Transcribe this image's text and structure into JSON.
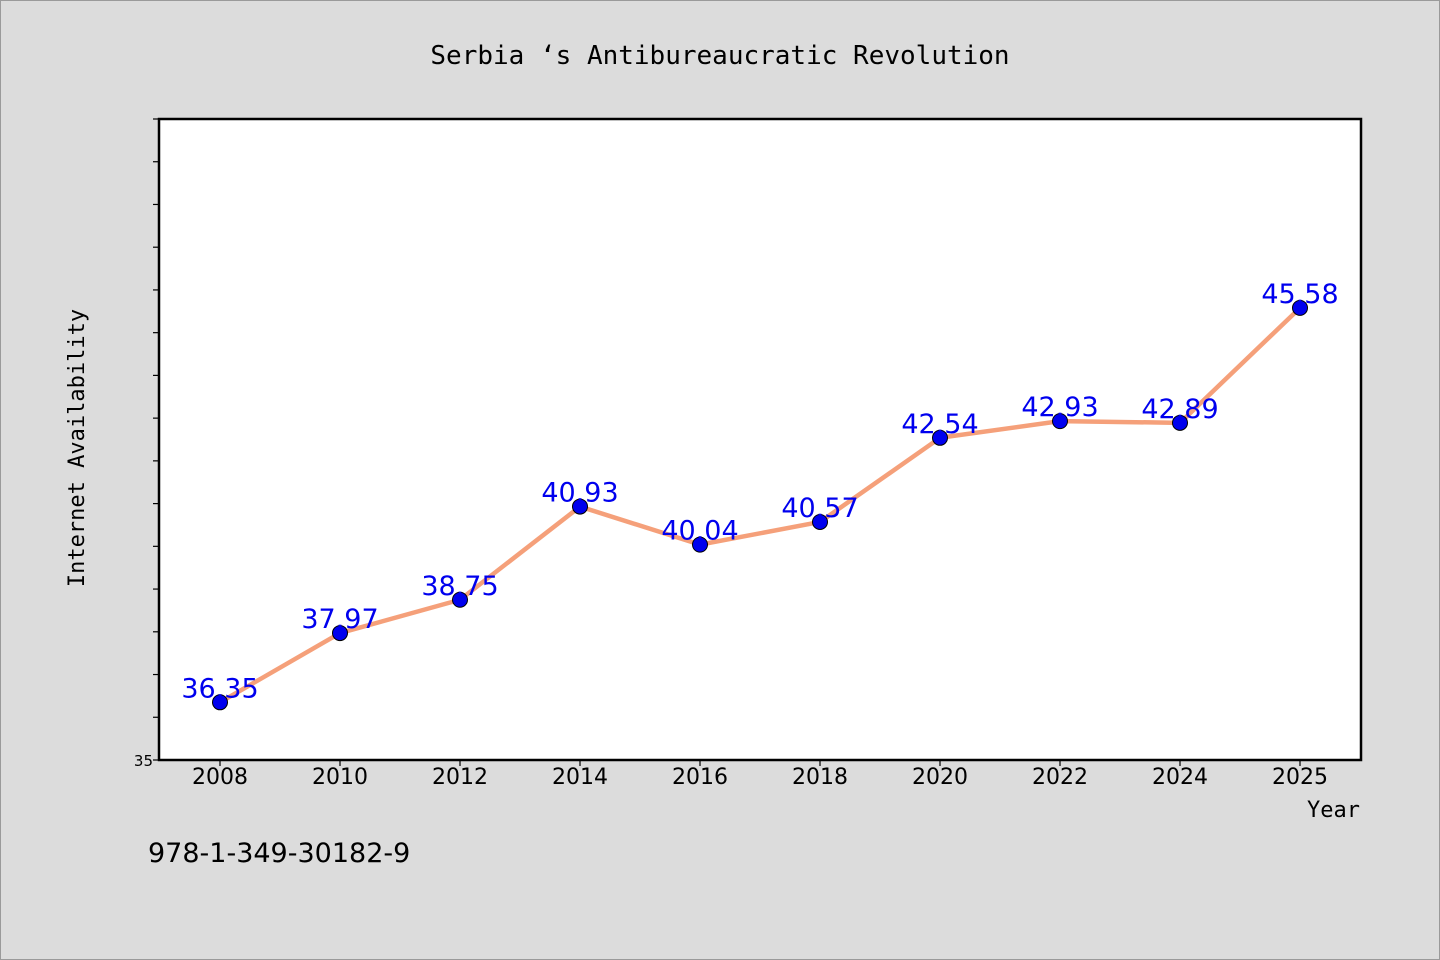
{
  "chart_data": {
    "type": "line",
    "title": "Serbia ‘s Antibureaucratic Revolution",
    "xlabel": "Year",
    "ylabel": "Internet Availability",
    "y_tick_label": "35",
    "x": [
      "2008",
      "2010",
      "2012",
      "2014",
      "2016",
      "2018",
      "2020",
      "2022",
      "2024",
      "2025"
    ],
    "series": [
      {
        "values": [
          36.35,
          37.97,
          38.75,
          40.93,
          40.04,
          40.57,
          42.54,
          42.93,
          42.89,
          45.58
        ],
        "labels": [
          "36.35",
          "37.97",
          "38.75",
          "40.93",
          "40.04",
          "40.57",
          "42.54",
          "42.93",
          "42.89",
          "45.58"
        ],
        "line_color": "#f5a07a",
        "marker_color": "#0000ee",
        "label_color": "#0000ee"
      }
    ],
    "ylim": [
      35,
      50
    ],
    "y_minor_step": 1,
    "grid": false,
    "legend": "none",
    "footnote": "978-1-349-30182-9"
  }
}
